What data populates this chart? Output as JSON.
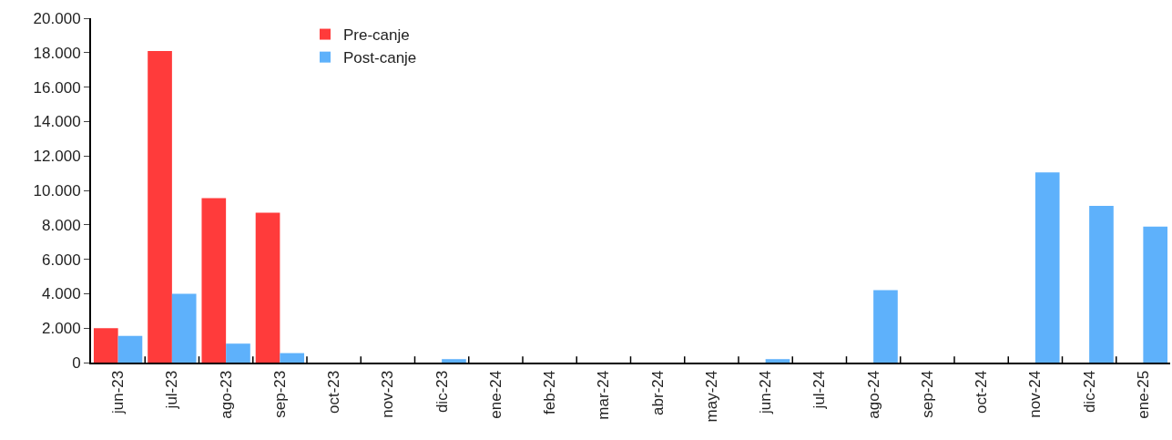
{
  "chart_data": {
    "type": "bar",
    "categories": [
      "jun-23",
      "jul-23",
      "ago-23",
      "sep-23",
      "oct-23",
      "nov-23",
      "dic-23",
      "ene-24",
      "feb-24",
      "mar-24",
      "abr-24",
      "may-24",
      "jun-24",
      "jul-24",
      "ago-24",
      "sep-24",
      "oct-24",
      "nov-24",
      "dic-24",
      "ene-25"
    ],
    "series": [
      {
        "name": "Pre-canje",
        "color": "#ff3b3b",
        "values": [
          2000,
          18100,
          9550,
          8700,
          0,
          0,
          0,
          0,
          0,
          0,
          0,
          0,
          0,
          0,
          0,
          0,
          0,
          0,
          0,
          0
        ]
      },
      {
        "name": "Post-canje",
        "color": "#5eb1fb",
        "values": [
          1550,
          4000,
          1100,
          550,
          0,
          0,
          200,
          0,
          0,
          0,
          0,
          0,
          200,
          0,
          4200,
          0,
          0,
          11050,
          9100,
          7900
        ]
      }
    ],
    "ylim": [
      0,
      20000
    ],
    "yticks": [
      {
        "value": 0,
        "label": "0"
      },
      {
        "value": 2000,
        "label": "2.000"
      },
      {
        "value": 4000,
        "label": "4.000"
      },
      {
        "value": 6000,
        "label": "6.000"
      },
      {
        "value": 8000,
        "label": "8.000"
      },
      {
        "value": 10000,
        "label": "10.000"
      },
      {
        "value": 12000,
        "label": "12.000"
      },
      {
        "value": 14000,
        "label": "14.000"
      },
      {
        "value": 16000,
        "label": "16.000"
      },
      {
        "value": 18000,
        "label": "18.000"
      },
      {
        "value": 20000,
        "label": "20.000"
      }
    ],
    "legend": "top left"
  }
}
